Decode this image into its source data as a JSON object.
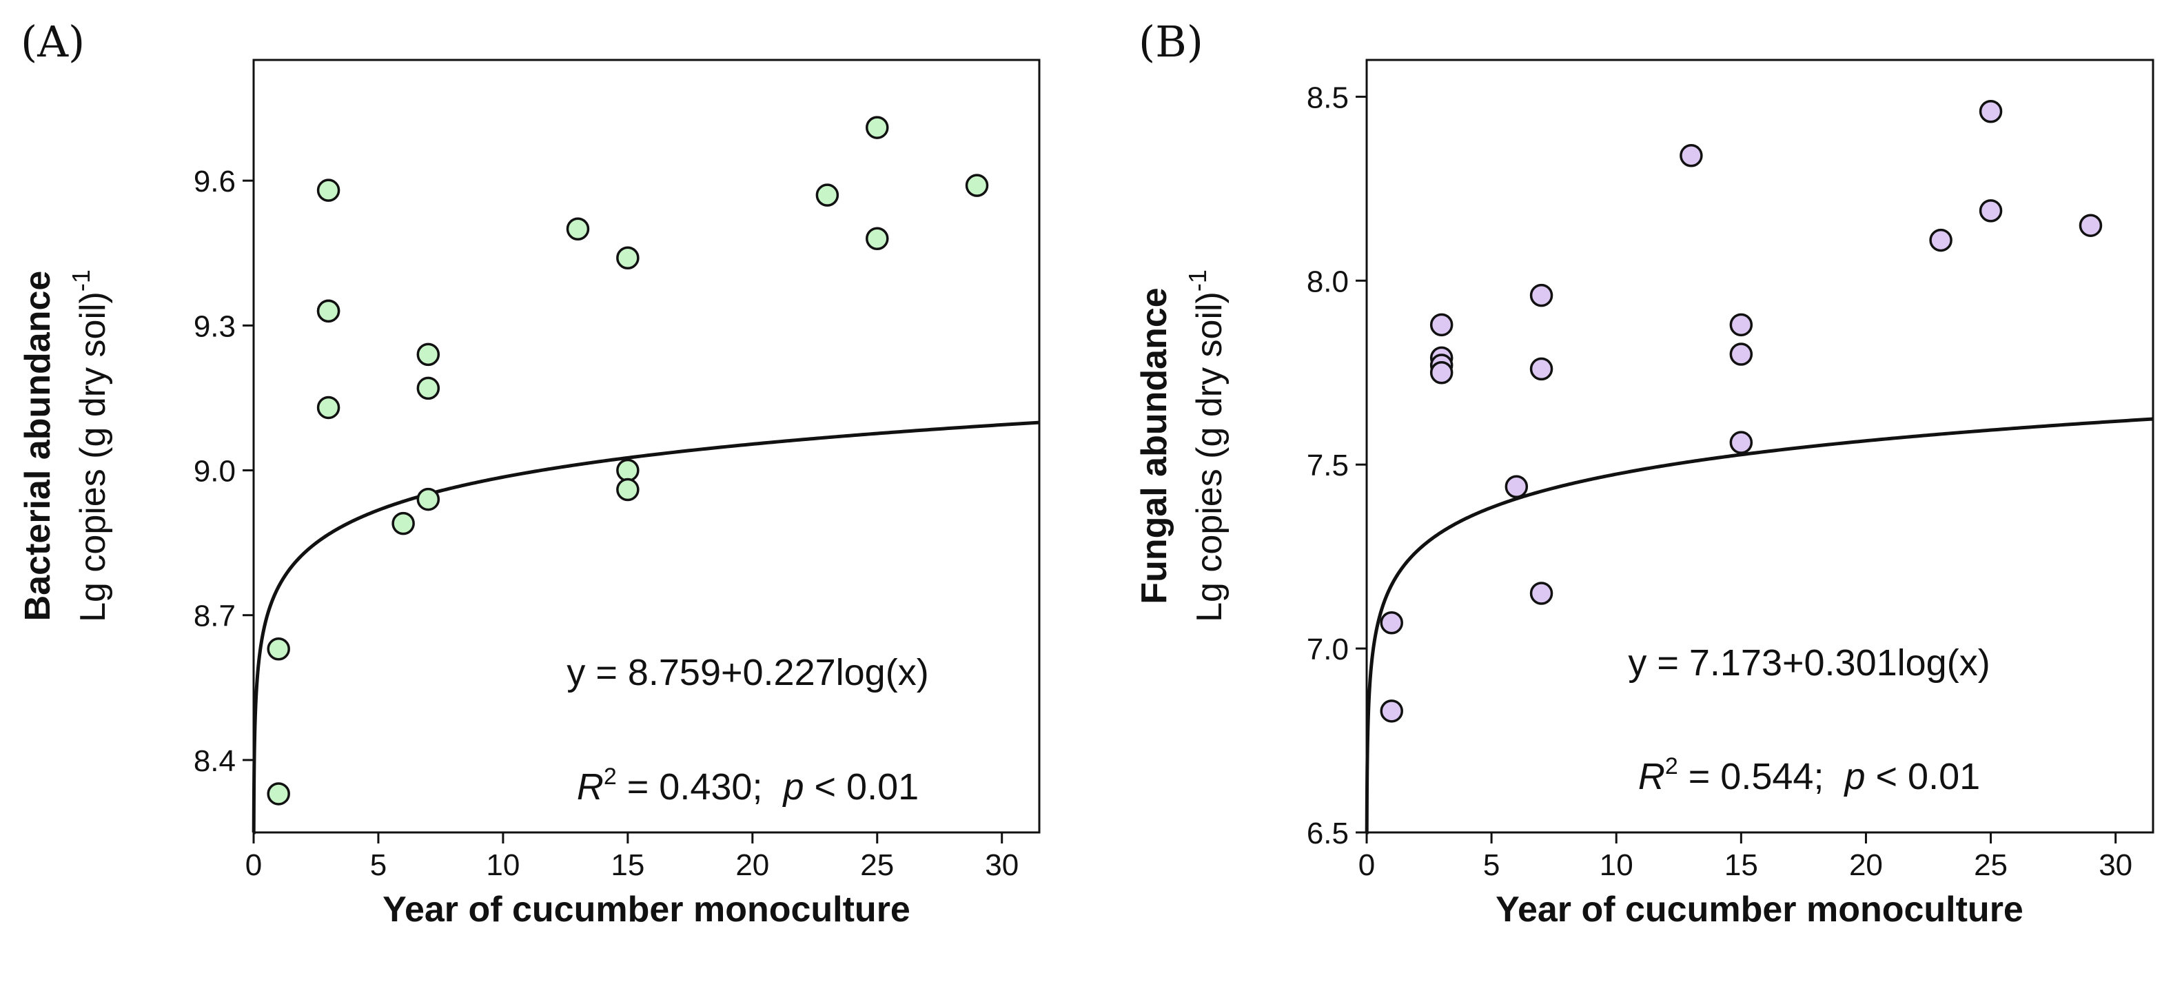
{
  "chart_data": [
    {
      "type": "scatter",
      "panel_label": "(A)",
      "title": "",
      "xlabel": "Year of cucumber monoculture",
      "ylabel_main": "Bacterial abundance",
      "ylabel_sub": "Lg copies (g dry soil)",
      "ylabel_sup": "-1",
      "xlim": [
        0,
        31.5
      ],
      "ylim": [
        8.25,
        9.85
      ],
      "xticks": [
        0,
        5,
        10,
        15,
        20,
        25,
        30
      ],
      "yticks": [
        8.4,
        8.7,
        9.0,
        9.3,
        9.6
      ],
      "ytick_labels": [
        "8.4",
        "8.7",
        "9.0",
        "9.3",
        "9.6"
      ],
      "point_color": "#c8f5c8",
      "grid": false,
      "series": [
        {
          "points": [
            {
              "x": 1,
              "y": 8.33
            },
            {
              "x": 1,
              "y": 8.63
            },
            {
              "x": 3,
              "y": 9.58
            },
            {
              "x": 3,
              "y": 9.33
            },
            {
              "x": 3,
              "y": 9.33
            },
            {
              "x": 3,
              "y": 9.13
            },
            {
              "x": 6,
              "y": 8.89
            },
            {
              "x": 7,
              "y": 9.24
            },
            {
              "x": 7,
              "y": 9.17
            },
            {
              "x": 7,
              "y": 8.94
            },
            {
              "x": 13,
              "y": 9.5
            },
            {
              "x": 15,
              "y": 9.44
            },
            {
              "x": 15,
              "y": 9.0
            },
            {
              "x": 15,
              "y": 8.96
            },
            {
              "x": 23,
              "y": 9.57
            },
            {
              "x": 25,
              "y": 9.71
            },
            {
              "x": 25,
              "y": 9.48
            },
            {
              "x": 29,
              "y": 9.59
            }
          ]
        }
      ],
      "fit": {
        "intercept": 8.759,
        "slope": 0.227
      },
      "equation_text": "y = 8.759+0.227log(x)",
      "stats": {
        "r2_symbol": "R",
        "r2_sup": "2",
        "r2_text": " = 0.430;  ",
        "p_symbol": "p",
        "p_text": " < 0.01"
      }
    },
    {
      "type": "scatter",
      "panel_label": "(B)",
      "title": "",
      "xlabel": "Year of cucumber monoculture",
      "ylabel_main": "Fungal abundance",
      "ylabel_sub": "Lg copies (g dry soil)",
      "ylabel_sup": "-1",
      "xlim": [
        0,
        31.5
      ],
      "ylim": [
        6.5,
        8.6
      ],
      "xticks": [
        0,
        5,
        10,
        15,
        20,
        25,
        30
      ],
      "yticks": [
        6.5,
        7.0,
        7.5,
        8.0,
        8.5
      ],
      "ytick_labels": [
        "6.5",
        "7.0",
        "7.5",
        "8.0",
        "8.5"
      ],
      "point_color": "#dcc8f2",
      "grid": false,
      "series": [
        {
          "points": [
            {
              "x": 1,
              "y": 7.07
            },
            {
              "x": 1,
              "y": 6.83
            },
            {
              "x": 3,
              "y": 7.88
            },
            {
              "x": 3,
              "y": 7.79
            },
            {
              "x": 3,
              "y": 7.77
            },
            {
              "x": 3,
              "y": 7.75
            },
            {
              "x": 6,
              "y": 7.44
            },
            {
              "x": 7,
              "y": 7.96
            },
            {
              "x": 7,
              "y": 7.76
            },
            {
              "x": 7,
              "y": 7.15
            },
            {
              "x": 13,
              "y": 8.34
            },
            {
              "x": 15,
              "y": 7.88
            },
            {
              "x": 15,
              "y": 7.8
            },
            {
              "x": 15,
              "y": 7.56
            },
            {
              "x": 23,
              "y": 8.11
            },
            {
              "x": 25,
              "y": 8.46
            },
            {
              "x": 25,
              "y": 8.19
            },
            {
              "x": 29,
              "y": 8.15
            }
          ]
        }
      ],
      "fit": {
        "intercept": 7.173,
        "slope": 0.301
      },
      "equation_text": "y = 7.173+0.301log(x)",
      "stats": {
        "r2_symbol": "R",
        "r2_sup": "2",
        "r2_text": " = 0.544;  ",
        "p_symbol": "p",
        "p_text": " < 0.01"
      }
    }
  ]
}
